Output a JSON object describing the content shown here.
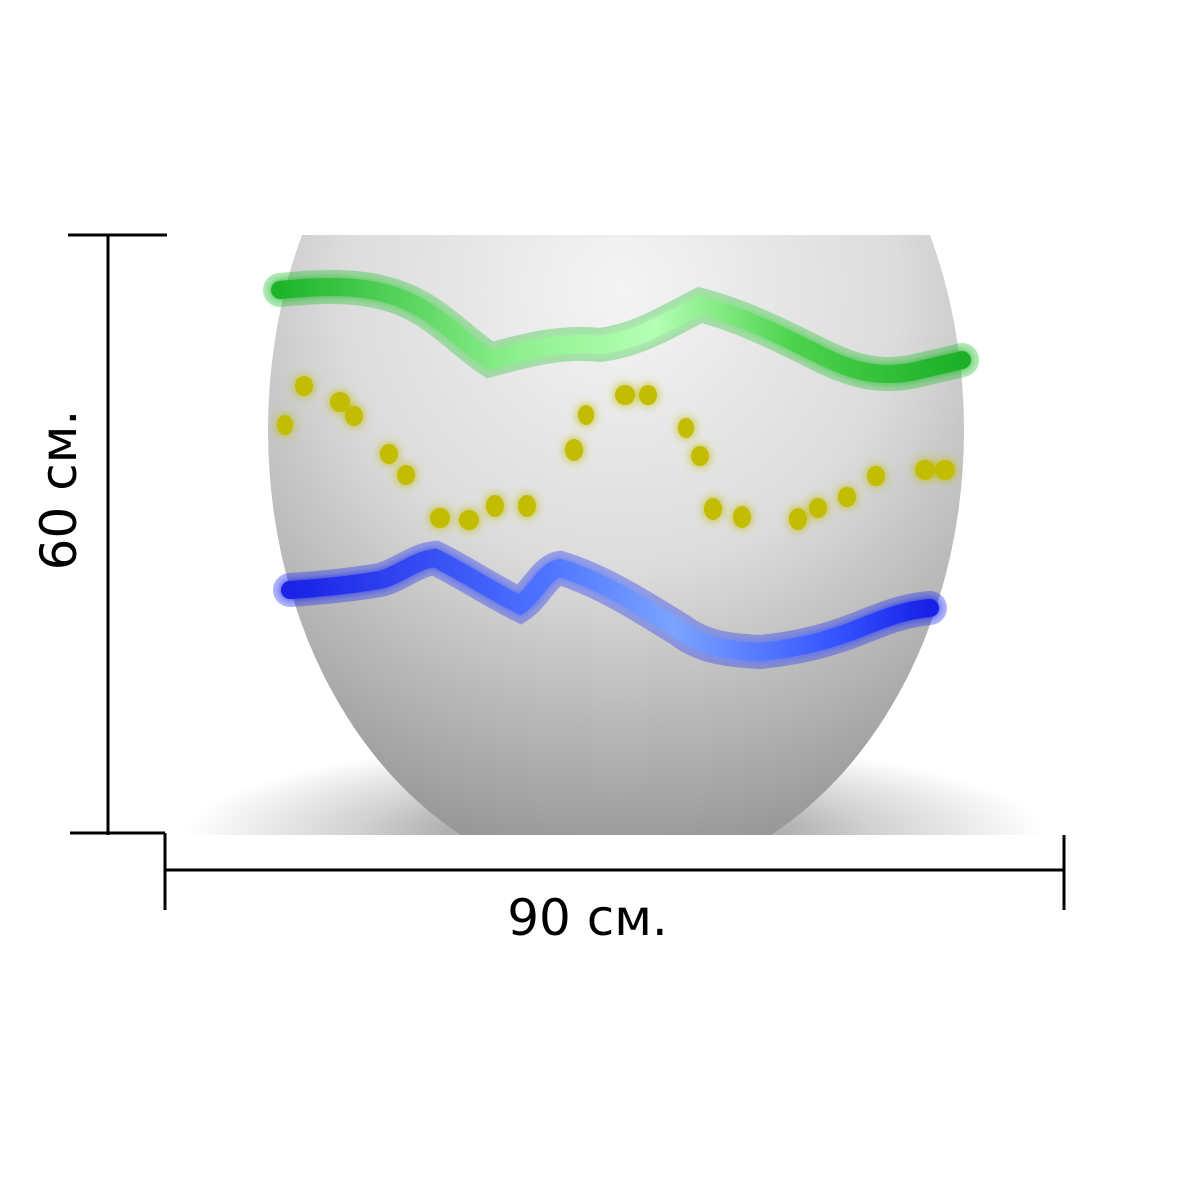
{
  "dimensions": {
    "width_label": "90 см.",
    "height_label": "60 см."
  },
  "colors": {
    "egg_light": "#f4f4f4",
    "egg_shadow": "#8e8e8e",
    "stripe_top": "#22c02e",
    "stripe_top_highlight": "#aaffaa",
    "stripe_bottom": "#1c2cf0",
    "stripe_bottom_highlight": "#7fa8ff",
    "dots": "#c8c400",
    "dimension_lines": "#000000"
  }
}
